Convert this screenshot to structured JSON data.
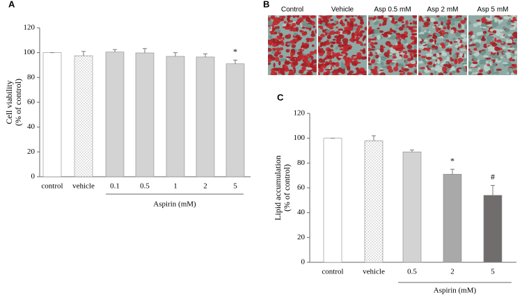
{
  "chart_data": [
    {
      "type": "bar",
      "panel": "A",
      "ylabel": [
        "Cell viability",
        "(% of control)"
      ],
      "xlabel": "Aspirin (mM)",
      "categories": [
        "control",
        "vehicle",
        "0.1",
        "0.5",
        "1",
        "2",
        "5"
      ],
      "values": [
        100,
        97.5,
        100.5,
        99.8,
        97,
        96.5,
        91
      ],
      "errors": [
        0,
        3.5,
        2,
        3.5,
        3,
        2.5,
        3
      ],
      "colors": [
        "#ffffff",
        "#ffffff",
        "#d3d3d3",
        "#d3d3d3",
        "#d3d3d3",
        "#d3d3d3",
        "#d3d3d3"
      ],
      "patterns": [
        null,
        "dots",
        null,
        null,
        null,
        null,
        null
      ],
      "annotations": [
        {
          "index": 6,
          "text": "*"
        }
      ],
      "ylim": [
        0,
        120
      ],
      "yticks": [
        0,
        20,
        40,
        60,
        80,
        100,
        120
      ]
    },
    {
      "type": "bar",
      "panel": "C",
      "ylabel": [
        "Lipid accumulation",
        "(% of control)"
      ],
      "xlabel": "Aspirin (mM)",
      "categories": [
        "control",
        "vehicle",
        "0.5",
        "2",
        "5"
      ],
      "values": [
        100,
        98,
        89,
        71,
        54
      ],
      "errors": [
        0,
        4,
        1.5,
        4,
        8
      ],
      "colors": [
        "#ffffff",
        "#ffffff",
        "#d3d3d3",
        "#a9a9a9",
        "#716d6d"
      ],
      "patterns": [
        null,
        "dots",
        null,
        null,
        null
      ],
      "annotations": [
        {
          "index": 3,
          "text": "*"
        },
        {
          "index": 4,
          "text": "#"
        }
      ],
      "ylim": [
        0,
        120
      ],
      "yticks": [
        0,
        20,
        40,
        60,
        80,
        100,
        120
      ]
    }
  ],
  "panel_b": {
    "label": "B",
    "images": [
      "Control",
      "Vehicle",
      "Asp 0.5 mM",
      "Asp 2 mM",
      "Asp 5 mM"
    ]
  }
}
